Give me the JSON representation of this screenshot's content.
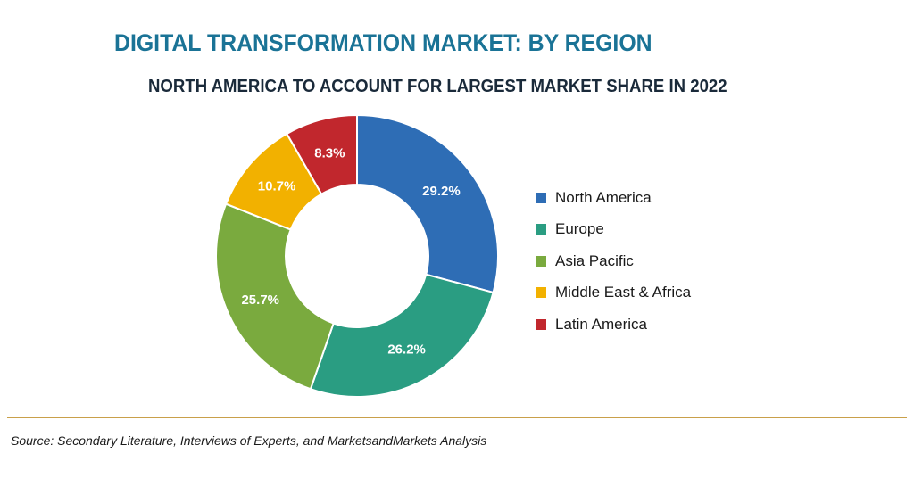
{
  "title": "DIGITAL TRANSFORMATION MARKET: BY REGION",
  "subtitle": "NORTH AMERICA TO ACCOUNT FOR LARGEST MARKET SHARE IN 2022",
  "source": "Source: Secondary Literature, Interviews of Experts, and MarketsandMarkets Analysis",
  "chart_data": {
    "type": "pie",
    "variant": "donut",
    "title": "DIGITAL TRANSFORMATION MARKET: BY REGION",
    "subtitle": "NORTH AMERICA TO ACCOUNT FOR LARGEST MARKET SHARE IN 2022",
    "unit": "%",
    "legend_position": "right",
    "slices": [
      {
        "label": "North America",
        "value": 29.2,
        "value_label": "29.2%",
        "color": "#2e6db5"
      },
      {
        "label": "Europe",
        "value": 26.2,
        "value_label": "26.2%",
        "color": "#2a9d82"
      },
      {
        "label": "Asia Pacific",
        "value": 25.7,
        "value_label": "25.7%",
        "color": "#7aaa3e"
      },
      {
        "label": "Middle East & Africa",
        "value": 10.7,
        "value_label": "10.7%",
        "color": "#f2b100"
      },
      {
        "label": "Latin America",
        "value": 8.3,
        "value_label": "8.3%",
        "color": "#c1272d"
      }
    ]
  }
}
